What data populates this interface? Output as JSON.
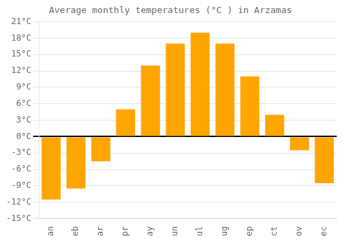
{
  "chart_data": {
    "type": "bar",
    "title": "Average monthly temperatures (°C ) in Arzamas",
    "categories": [
      "an",
      "eb",
      "ar",
      "pr",
      "ay",
      "un",
      "ul",
      "ug",
      "ep",
      "ct",
      "ov",
      "ec"
    ],
    "values": [
      -11.5,
      -9.5,
      -4.5,
      5.0,
      13.0,
      17.0,
      19.0,
      17.0,
      11.0,
      4.0,
      -2.5,
      -8.5
    ],
    "color": "#FFA500",
    "ylim": [
      -15,
      21
    ],
    "yticks": [
      {
        "value": -15,
        "label": "-15°C"
      },
      {
        "value": -12,
        "label": "-12°C"
      },
      {
        "value": -9,
        "label": "-9°C"
      },
      {
        "value": -6,
        "label": "-6°C"
      },
      {
        "value": -3,
        "label": "-3°C"
      },
      {
        "value": 0,
        "label": "0°C"
      },
      {
        "value": 3,
        "label": "3°C"
      },
      {
        "value": 6,
        "label": "6°C"
      },
      {
        "value": 9,
        "label": "9°C"
      },
      {
        "value": 12,
        "label": "12°C"
      },
      {
        "value": 15,
        "label": "15°C"
      },
      {
        "value": 18,
        "label": "18°C"
      },
      {
        "value": 21,
        "label": "21°C"
      }
    ],
    "grid": true
  }
}
